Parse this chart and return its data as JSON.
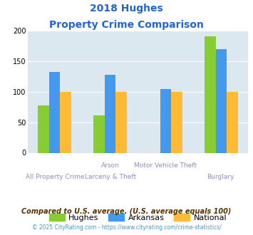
{
  "title_line1": "2018 Hughes",
  "title_line2": "Property Crime Comparison",
  "cat_labels_top": [
    "",
    "Arson",
    "Motor Vehicle Theft",
    ""
  ],
  "cat_labels_bot": [
    "All Property Crime",
    "Larceny & Theft",
    "",
    "Burglary"
  ],
  "hughes": [
    77,
    61,
    0,
    191
  ],
  "arkansas": [
    132,
    128,
    104,
    169
  ],
  "national": [
    100,
    100,
    100,
    100
  ],
  "hughes_color": "#88cc33",
  "arkansas_color": "#4499ee",
  "national_color": "#ffbb33",
  "ylim": [
    0,
    200
  ],
  "yticks": [
    0,
    50,
    100,
    150,
    200
  ],
  "bg_color": "#dce8f0",
  "legend_labels": [
    "Hughes",
    "Arkansas",
    "National"
  ],
  "footnote1": "Compared to U.S. average. (U.S. average equals 100)",
  "footnote2": "© 2025 CityRating.com - https://www.cityrating.com/crime-statistics/",
  "title_color": "#2266cc",
  "footnote1_color": "#553300",
  "footnote2_color": "#4499cc",
  "xtick_color": "#9988bb"
}
